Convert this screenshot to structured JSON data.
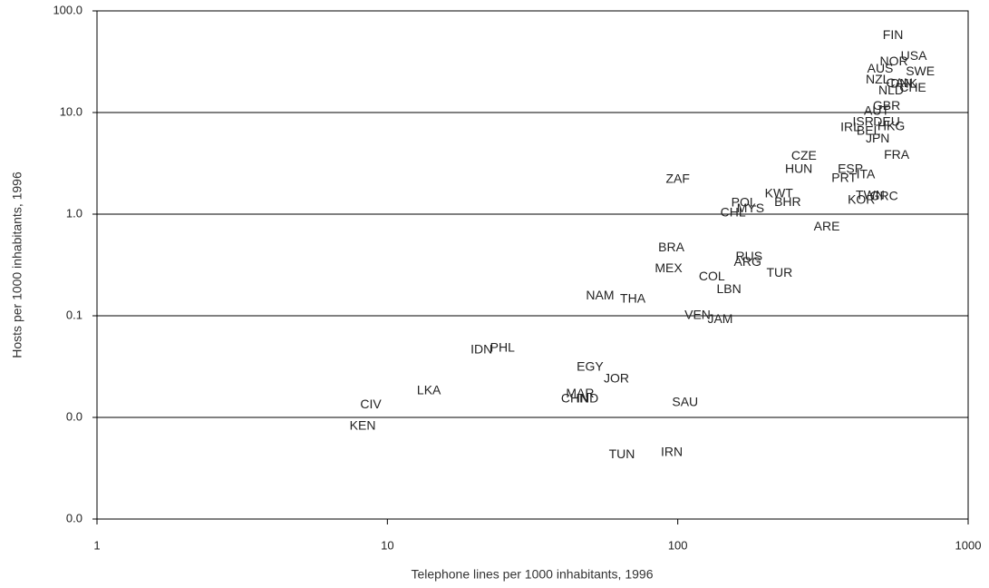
{
  "chart_data": {
    "type": "scatter",
    "x_label": "Telephone lines per 1000 inhabitants, 1996",
    "y_label": "Hosts per 1000 inhabitants, 1996",
    "xscale": "log",
    "yscale": "log",
    "grid": true,
    "xlim": [
      1,
      1000
    ],
    "xticks": [
      1,
      10,
      100,
      1000
    ],
    "ylim": [
      0.001,
      100
    ],
    "yticks": [
      {
        "value": 0.001,
        "label": "0.0"
      },
      {
        "value": 0.01,
        "label": "0.0"
      },
      0.1,
      {
        "value": 1,
        "label": "1.0"
      },
      {
        "value": 10,
        "label": "10.0"
      },
      {
        "value": 100,
        "label": "100.0"
      }
    ],
    "series": [
      {
        "color": "#222222",
        "labels": [
          "FIN",
          "USA",
          "NOR",
          "SWE",
          "AUS",
          "NZL",
          "DNK",
          "CAN",
          "CHE",
          "NLD",
          "GBR",
          "AUT",
          "ISR",
          "DEU",
          "IRL",
          "BEL",
          "HKG",
          "JPN",
          "FRA",
          "CZE",
          "HUN",
          "ESP",
          "ITA",
          "PRT",
          "ZAF",
          "KWT",
          "TWN",
          "GRC",
          "KOR",
          "POL",
          "BHR",
          "MYS",
          "CHL",
          "ARE",
          "BRA",
          "RUS",
          "ARG",
          "MEX",
          "TUR",
          "COL",
          "LBN",
          "NAM",
          "THA",
          "VEN",
          "JAM",
          "PHL",
          "IDN",
          "EGY",
          "JOR",
          "LKA",
          "MAR",
          "CHN",
          "IND",
          "CIV",
          "SAU",
          "KEN",
          "TUN",
          "IRN"
        ],
        "x": [
          551,
          650,
          555,
          684,
          498,
          488,
          601,
          580,
          645,
          543,
          524,
          484,
          435,
          524,
          393,
          454,
          543,
          488,
          567,
          272,
          261,
          393,
          444,
          374,
          100,
          223,
          460,
          513,
          429,
          169,
          239,
          178,
          155,
          326,
          95,
          176,
          174,
          93,
          224,
          131,
          150,
          54,
          70,
          117,
          140,
          24.9,
          21.1,
          49.9,
          61.5,
          13.9,
          46.1,
          44.2,
          48.9,
          8.77,
          106,
          8.22,
          64.2,
          95.4
        ],
        "values": [
          57,
          35.6,
          31.5,
          25.1,
          26.7,
          20.9,
          18.9,
          19.2,
          17.4,
          16.3,
          11.5,
          10.2,
          8.0,
          8.0,
          7.1,
          6.5,
          7.2,
          5.5,
          3.8,
          3.7,
          2.75,
          2.75,
          2.44,
          2.24,
          2.2,
          1.58,
          1.52,
          1.49,
          1.37,
          1.29,
          1.3,
          1.12,
          1.02,
          0.743,
          0.464,
          0.378,
          0.334,
          0.29,
          0.262,
          0.241,
          0.181,
          0.157,
          0.145,
          0.1,
          0.092,
          0.048,
          0.046,
          0.031,
          0.0239,
          0.0183,
          0.0169,
          0.0152,
          0.0152,
          0.0132,
          0.014,
          0.0082,
          0.0043,
          0.0045
        ]
      }
    ]
  }
}
